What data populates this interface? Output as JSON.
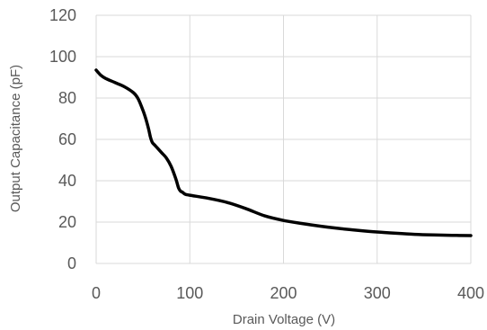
{
  "chart_data": {
    "type": "line",
    "xlabel": "Drain Voltage (V)",
    "ylabel": "Output Capacitance (pF)",
    "xlim": [
      0,
      400
    ],
    "ylim": [
      0,
      120
    ],
    "x_ticks": [
      "0",
      "100",
      "200",
      "300",
      "400"
    ],
    "y_ticks": [
      "0",
      "20",
      "40",
      "60",
      "80",
      "100",
      "120"
    ],
    "grid": true,
    "series": [
      {
        "color": "#000000",
        "x": [
          0,
          5,
          10,
          20,
          30,
          40,
          45,
          50,
          53,
          56,
          58,
          60,
          63,
          66,
          70,
          75,
          80,
          85,
          88,
          90,
          92,
          95,
          100,
          120,
          140,
          160,
          180,
          200,
          220,
          240,
          260,
          280,
          300,
          320,
          340,
          360,
          380,
          400
        ],
        "y": [
          93.5,
          91,
          89.5,
          87.5,
          85.5,
          82.5,
          79.5,
          74,
          70,
          65,
          61,
          58.5,
          57,
          55.5,
          53.5,
          51,
          47,
          41,
          36.5,
          35,
          34.5,
          33.5,
          33,
          31.5,
          29.5,
          26.5,
          23,
          20.8,
          19.3,
          18,
          16.9,
          16,
          15.2,
          14.6,
          14.1,
          13.8,
          13.6,
          13.5
        ]
      }
    ]
  }
}
